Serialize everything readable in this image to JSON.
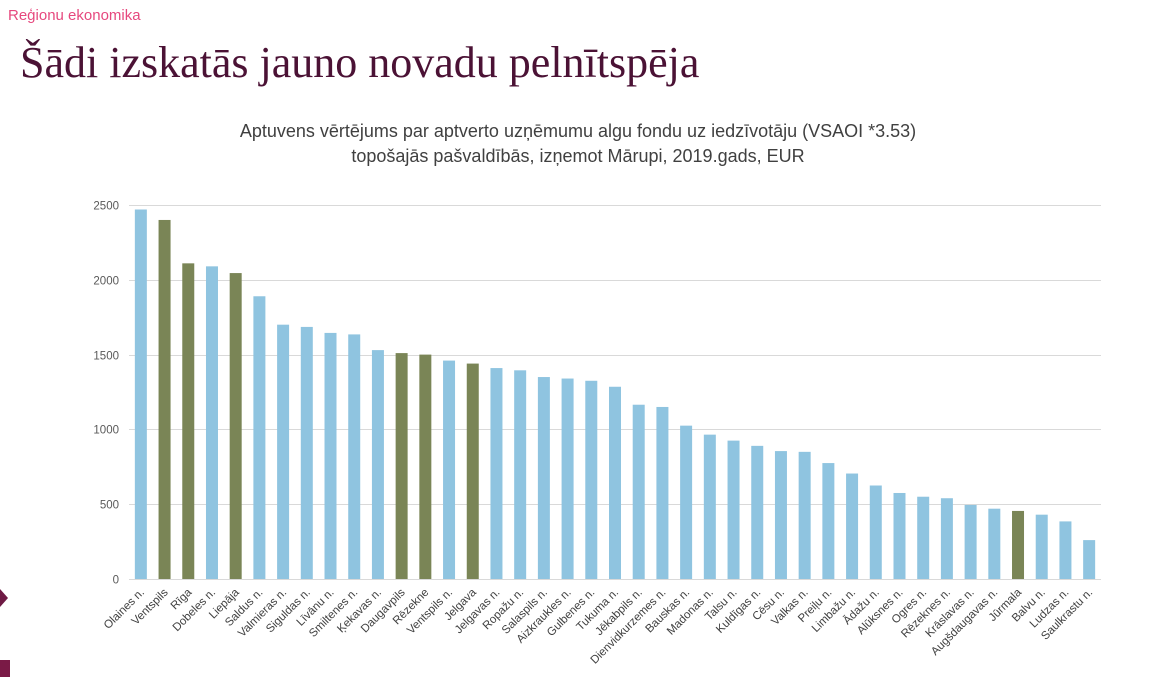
{
  "header": {
    "section_label": "Reģionu ekonomika"
  },
  "slide": {
    "title": "Šādi izskatās jauno novadu pelnītspēja"
  },
  "colors": {
    "section_label": "#e6487e",
    "slide_title": "#4b1235",
    "marker_triangle": "#6e1a44",
    "marker_square": "#7a1a46",
    "bar_default": "#8fc4e0",
    "bar_highlight": "#7a8556",
    "grid": "#d9d9d9"
  },
  "chart_data": {
    "type": "bar",
    "title_lines": [
      "Aptuvens vērtējums par aptverto uzņēmumu algu fondu uz iedzīvotāju (VSAOI *3.53)",
      "topošajās pašvaldībās, izņemot Mārupi, 2019.gads, EUR"
    ],
    "categories": [
      "Olaines n.",
      "Ventspils",
      "Rīga",
      "Dobeles n.",
      "Liepāja",
      "Saldus n.",
      "Valmieras n.",
      "Siguldas n.",
      "Līvānu n.",
      "Smiltenes n.",
      "Ķekavas n.",
      "Daugavpils",
      "Rēzekne",
      "Ventspils n.",
      "Jelgava",
      "Jelgavas n.",
      "Ropažu n.",
      "Salaspils n.",
      "Aizkraukles n.",
      "Gulbenes n.",
      "Tukuma n.",
      "Jēkabpils n.",
      "Dienvidkurzemes n.",
      "Bauskas n.",
      "Madonas n.",
      "Talsu n.",
      "Kuldīgas n.",
      "Cēsu n.",
      "Valkas n.",
      "Preiļu n.",
      "Limbažu n.",
      "Ādažu n.",
      "Alūksnes n.",
      "Ogres n.",
      "Rēzeknes n.",
      "Krāslavas n.",
      "Augšdaugavas n.",
      "Jūrmala",
      "Balvu n.",
      "Ludzas n.",
      "Saulkrastu n."
    ],
    "values": [
      2470,
      2400,
      2110,
      2090,
      2045,
      1890,
      1700,
      1685,
      1645,
      1635,
      1530,
      1510,
      1500,
      1460,
      1440,
      1410,
      1395,
      1350,
      1340,
      1325,
      1285,
      1165,
      1150,
      1025,
      965,
      925,
      890,
      855,
      850,
      775,
      705,
      625,
      575,
      550,
      540,
      495,
      470,
      455,
      430,
      385,
      260
    ],
    "bar_colors": [
      "#8fc4e0",
      "#7a8556",
      "#7a8556",
      "#8fc4e0",
      "#7a8556",
      "#8fc4e0",
      "#8fc4e0",
      "#8fc4e0",
      "#8fc4e0",
      "#8fc4e0",
      "#8fc4e0",
      "#7a8556",
      "#7a8556",
      "#8fc4e0",
      "#7a8556",
      "#8fc4e0",
      "#8fc4e0",
      "#8fc4e0",
      "#8fc4e0",
      "#8fc4e0",
      "#8fc4e0",
      "#8fc4e0",
      "#8fc4e0",
      "#8fc4e0",
      "#8fc4e0",
      "#8fc4e0",
      "#8fc4e0",
      "#8fc4e0",
      "#8fc4e0",
      "#8fc4e0",
      "#8fc4e0",
      "#8fc4e0",
      "#8fc4e0",
      "#8fc4e0",
      "#8fc4e0",
      "#8fc4e0",
      "#8fc4e0",
      "#7a8556",
      "#8fc4e0",
      "#8fc4e0",
      "#8fc4e0"
    ],
    "ylim": [
      0,
      2500
    ],
    "yticks": [
      0,
      500,
      1000,
      1500,
      2000,
      2500
    ],
    "grid": true,
    "legend": false
  }
}
